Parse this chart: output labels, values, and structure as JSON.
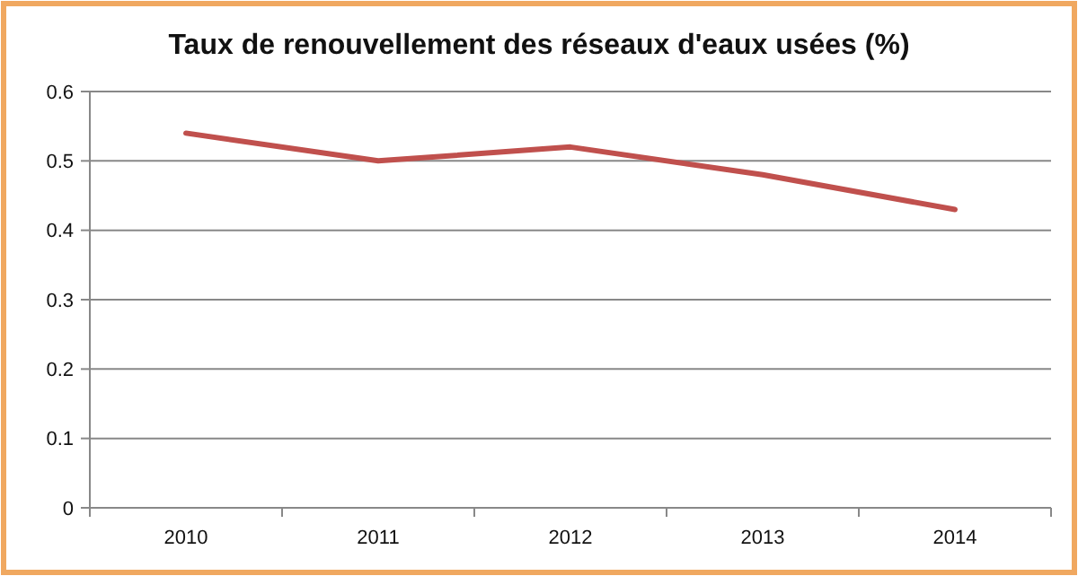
{
  "chart_data": {
    "type": "line",
    "title": "Taux de renouvellement des réseaux d'eaux usées (%)",
    "categories": [
      "2010",
      "2011",
      "2012",
      "2013",
      "2014"
    ],
    "series": [
      {
        "color": "#c0504d",
        "values": [
          0.54,
          0.5,
          0.52,
          0.48,
          0.43
        ]
      }
    ],
    "ylim": [
      0,
      0.6
    ],
    "yticks": [
      0,
      0.1,
      0.2,
      0.3,
      0.4,
      0.5,
      0.6
    ],
    "grid": "y",
    "marker": "none",
    "line_style": "solid"
  }
}
